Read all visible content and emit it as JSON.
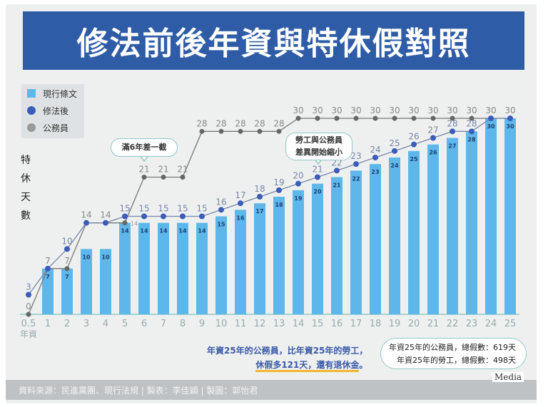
{
  "title": "修法前後年資與特休假對照",
  "legend": [
    {
      "label": "現行條文",
      "color": "#5db7ea"
    },
    {
      "label": "修法後",
      "color": "#3b5cb8"
    },
    {
      "label": "公務員",
      "color": "#999999"
    }
  ],
  "ylabel_chars": [
    "特",
    "休",
    "天",
    "數"
  ],
  "callouts": {
    "six_years": "滿6年差一截",
    "narrowing_line1": "勞工與公務員",
    "narrowing_line2": "差異開始縮小"
  },
  "note": {
    "line1": "年資25年的公務員，比年資25年的勞工，",
    "line2": "休假多121天，還有退休金",
    "line2_end": "。"
  },
  "totals": {
    "civil": "年資25年的公務員，總假數：619天",
    "labor": "年資25年的勞工，總假數：498天"
  },
  "footer": "資料來源：民進黨團、現行法規 | 製表：李佳穎 | 製圖：郭怡君",
  "logo": "Media",
  "chart_data": {
    "type": "bar",
    "title": "修法前後年資與特休假對照",
    "xlabel": "年資",
    "ylabel": "特休天數",
    "categories": [
      "0.5",
      "1",
      "2",
      "3",
      "4",
      "5",
      "6",
      "7",
      "8",
      "9",
      "10",
      "11",
      "12",
      "13",
      "14",
      "15",
      "16",
      "17",
      "18",
      "19",
      "20",
      "21",
      "22",
      "23",
      "24",
      "25"
    ],
    "ylim": [
      0,
      30
    ],
    "series": [
      {
        "name": "現行條文",
        "type": "bar",
        "color": "#5db7ea",
        "values": [
          0,
          7,
          7,
          10,
          10,
          14,
          14,
          14,
          14,
          14,
          15,
          16,
          17,
          18,
          19,
          20,
          21,
          22,
          23,
          24,
          25,
          26,
          27,
          28,
          30,
          30
        ]
      },
      {
        "name": "修法後",
        "type": "line",
        "color": "#3b5cb8",
        "values": [
          3,
          7,
          10,
          14,
          14,
          15,
          15,
          15,
          15,
          15,
          16,
          17,
          18,
          19,
          20,
          21,
          22,
          23,
          24,
          25,
          26,
          27,
          28,
          28,
          30,
          30
        ]
      },
      {
        "name": "公務員",
        "type": "line",
        "color": "#777777",
        "values": [
          0,
          7,
          7,
          14,
          14,
          14,
          21,
          21,
          21,
          28,
          28,
          28,
          28,
          28,
          30,
          30,
          30,
          30,
          30,
          30,
          30,
          30,
          30,
          30,
          30,
          30
        ]
      }
    ]
  }
}
